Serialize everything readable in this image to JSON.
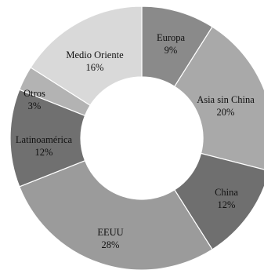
{
  "chart_data": {
    "type": "pie",
    "variant": "donut",
    "title": "",
    "slices": [
      {
        "label": "Europa",
        "value": 9,
        "display": "9%",
        "color": "#8a8a8a",
        "text_color": "#111111"
      },
      {
        "label": "Asia sin China",
        "value": 20,
        "display": "20%",
        "color": "#a9a9a9",
        "text_color": "#111111"
      },
      {
        "label": "China",
        "value": 12,
        "display": "12%",
        "color": "#6f6f6f",
        "text_color": "#111111"
      },
      {
        "label": "EEUU",
        "value": 28,
        "display": "28%",
        "color": "#9b9b9b",
        "text_color": "#111111"
      },
      {
        "label": "Latinoamérica",
        "value": 12,
        "display": "12%",
        "color": "#707070",
        "text_color": "#111111"
      },
      {
        "label": "Otros",
        "value": 3,
        "display": "3%",
        "color": "#b3b3b3",
        "text_color": "#111111"
      },
      {
        "label": "Medio Oriente",
        "value": 16,
        "display": "16%",
        "color": "#d9d9d9",
        "text_color": "#111111"
      }
    ],
    "legend": "none"
  }
}
